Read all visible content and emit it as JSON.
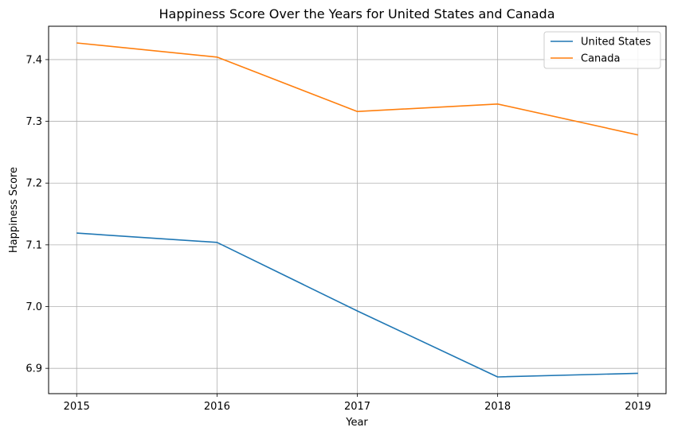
{
  "chart_data": {
    "type": "line",
    "title": "Happiness Score Over the Years for United States and Canada",
    "xlabel": "Year",
    "ylabel": "Happiness Score",
    "x": [
      2015,
      2016,
      2017,
      2018,
      2019
    ],
    "x_tick_labels": [
      "2015",
      "2016",
      "2017",
      "2018",
      "2019"
    ],
    "y_ticks": [
      6.9,
      7.0,
      7.1,
      7.2,
      7.3,
      7.4
    ],
    "y_tick_labels": [
      "6.9",
      "7.0",
      "7.1",
      "7.2",
      "7.3",
      "7.4"
    ],
    "xlim": [
      2014.8,
      2019.2
    ],
    "ylim": [
      6.859,
      7.454
    ],
    "grid": true,
    "legend_position": "top-right",
    "series": [
      {
        "name": "United States",
        "color": "#1f77b4",
        "values": [
          7.119,
          7.104,
          6.993,
          6.886,
          6.892
        ]
      },
      {
        "name": "Canada",
        "color": "#ff7f0e",
        "values": [
          7.427,
          7.404,
          7.316,
          7.328,
          7.278
        ]
      }
    ]
  }
}
